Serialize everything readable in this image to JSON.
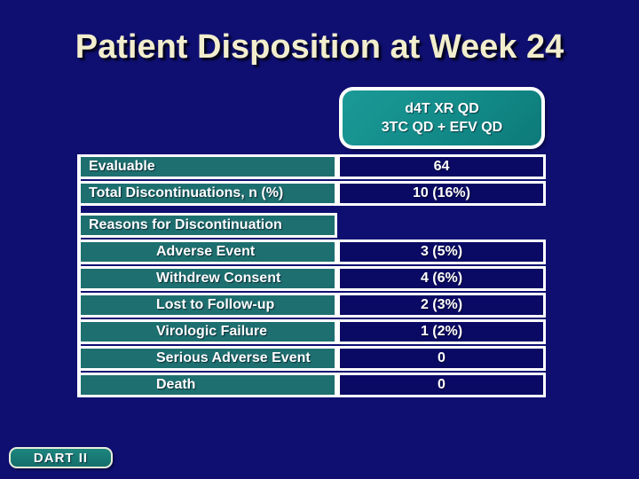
{
  "slide": {
    "title": "Patient Disposition at Week 24",
    "footer_badge": "DART II"
  },
  "column_header": {
    "line1": "d4T XR QD",
    "line2": "3TC QD + EFV QD"
  },
  "table": {
    "rows": [
      {
        "label": "Evaluable",
        "value": "64"
      },
      {
        "label": "Total Discontinuations, n (%)",
        "value": "10 (16%)"
      }
    ],
    "section_header": "Reasons for Discontinuation",
    "reason_rows": [
      {
        "label": "Adverse Event",
        "value": "3 (5%)"
      },
      {
        "label": "Withdrew Consent",
        "value": "4 (6%)"
      },
      {
        "label": "Lost to Follow-up",
        "value": "2 (3%)"
      },
      {
        "label": "Virologic Failure",
        "value": "1 (2%)"
      },
      {
        "label": "Serious Adverse Event",
        "value": "0"
      },
      {
        "label": "Death",
        "value": "0"
      }
    ]
  },
  "colors": {
    "background_navy": "#0f0f72",
    "value_cell_navy": "#0a0a64",
    "label_cell_teal": "#1e6f6f",
    "header_box_teal": "#128a88",
    "title_cream": "#f2eecd",
    "border_white": "#ffffff",
    "badge_border_cream": "#e9efda"
  }
}
